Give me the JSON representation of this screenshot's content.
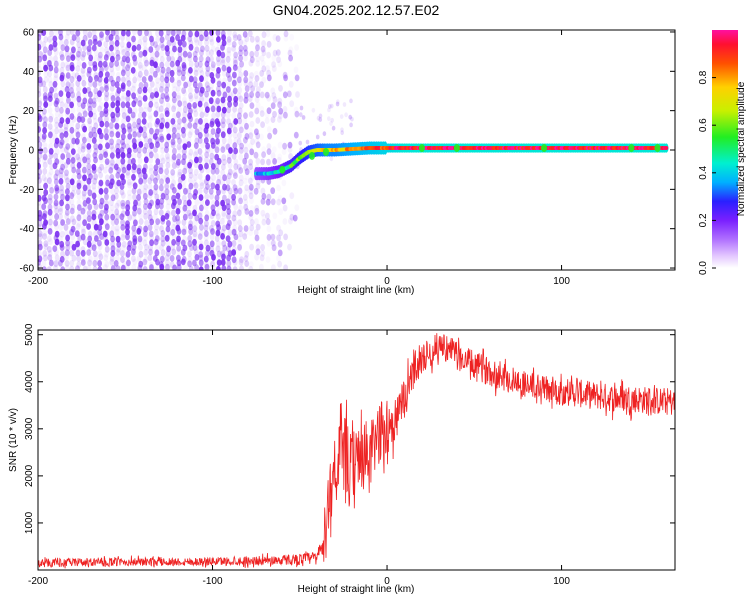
{
  "title": "GN04.2025.202.12.57.E02",
  "colors": {
    "snr_line": "#ee2222",
    "spectrogram_noise": "#7a2cf0",
    "track_core": "#e23030",
    "track_edge": "#2fd7c8",
    "track_mid": "#28d628"
  },
  "chart_data": [
    {
      "type": "heatmap",
      "name": "spectrogram",
      "xlabel": "Height of straight line (km)",
      "ylabel": "Frequency (Hz)",
      "xlim": [
        -200,
        165
      ],
      "ylim": [
        -61,
        61
      ],
      "xticks": [
        -200,
        -100,
        0,
        100
      ],
      "xtick_labels": [
        "-200",
        "-100",
        "0",
        "100"
      ],
      "yticks": [
        -60,
        -40,
        -20,
        0,
        20,
        40,
        60
      ],
      "ytick_labels": [
        "-60",
        "-40",
        "-20",
        "0",
        "20",
        "40",
        "60"
      ],
      "colorbar": {
        "label": "Normalized spectral amplitude",
        "range": [
          0,
          1
        ],
        "ticks": [
          0.0,
          0.2,
          0.4,
          0.6,
          0.8
        ],
        "tick_labels": [
          "0.0",
          "0.2",
          "0.4",
          "0.6",
          "0.8"
        ],
        "colormap": "rainbow-white-to-magenta"
      },
      "noise_region_x": [
        -200,
        -50
      ],
      "doppler_track": {
        "x": [
          -75,
          -68,
          -62,
          -55,
          -50,
          -45,
          -40,
          -35,
          -30,
          -20,
          -10,
          0,
          10,
          20,
          40,
          60,
          80,
          100,
          120,
          140,
          160
        ],
        "frequency": [
          -12,
          -12,
          -11,
          -8,
          -4,
          -1,
          0,
          0,
          0,
          0.5,
          1,
          1,
          1,
          1,
          1,
          1,
          1,
          1,
          1,
          1,
          1
        ],
        "amplitude": [
          0.35,
          0.4,
          0.45,
          0.55,
          0.6,
          0.65,
          0.7,
          0.75,
          0.75,
          0.8,
          0.85,
          0.9,
          0.95,
          0.95,
          0.95,
          0.95,
          0.95,
          0.95,
          0.95,
          0.95,
          0.95
        ]
      },
      "grid": false
    },
    {
      "type": "line",
      "name": "snr",
      "xlabel": "Height of straight line (km)",
      "ylabel": "SNR (10 * v/v)",
      "xlim": [
        -200,
        165
      ],
      "ylim": [
        0,
        5100
      ],
      "xticks": [
        -200,
        -100,
        0,
        100
      ],
      "xtick_labels": [
        "-200",
        "-100",
        "0",
        "100"
      ],
      "yticks": [
        1000,
        2000,
        3000,
        4000,
        5000
      ],
      "ytick_labels": [
        "1000",
        "2000",
        "3000",
        "4000",
        "5000"
      ],
      "series": [
        {
          "x": [
            -200,
            -150,
            -100,
            -70,
            -50,
            -40,
            -35,
            -33,
            -30,
            -25,
            -20,
            -15,
            -10,
            -5,
            0,
            5,
            10,
            15,
            20,
            25,
            30,
            35,
            40,
            50,
            60,
            70,
            80,
            90,
            100,
            110,
            120,
            130,
            140,
            150,
            160,
            165
          ],
          "y": [
            150,
            170,
            180,
            200,
            230,
            260,
            700,
            1700,
            2200,
            2400,
            2000,
            2500,
            2300,
            2900,
            3000,
            3200,
            3600,
            4300,
            4500,
            4600,
            4800,
            4700,
            4550,
            4350,
            4200,
            4050,
            3950,
            3850,
            3800,
            3750,
            3700,
            3650,
            3650,
            3600,
            3580,
            3560
          ],
          "noise": [
            90,
            90,
            90,
            100,
            120,
            150,
            500,
            700,
            900,
            900,
            900,
            800,
            800,
            700,
            600,
            500,
            450,
            400,
            350,
            300,
            300,
            300,
            300,
            300,
            300,
            300,
            300,
            300,
            300,
            300,
            300,
            300,
            300,
            300,
            300,
            300
          ]
        }
      ],
      "grid": false
    }
  ]
}
